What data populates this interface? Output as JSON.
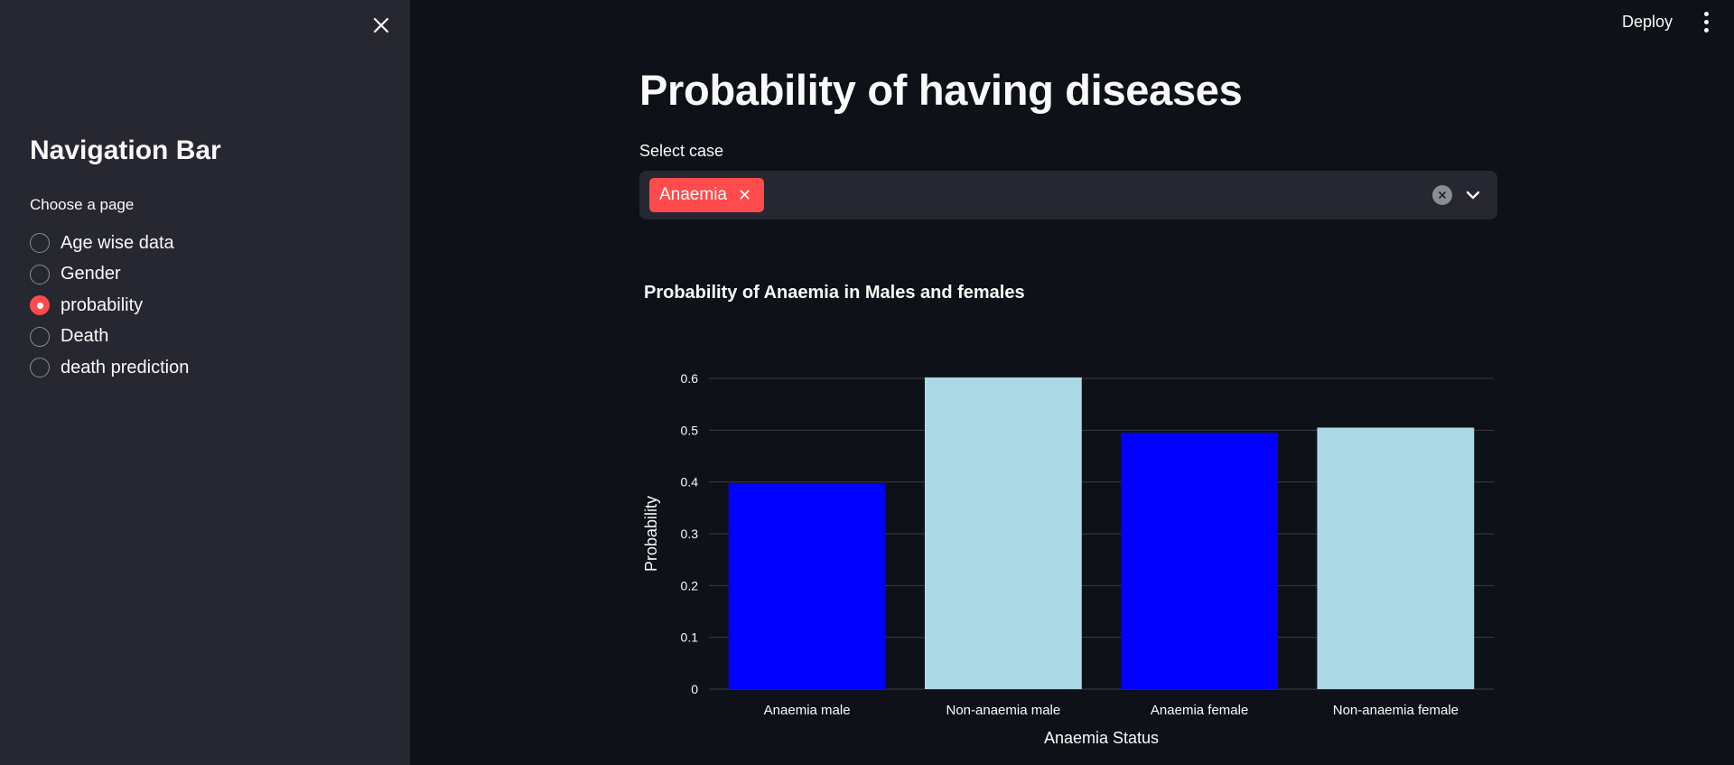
{
  "sidebar": {
    "title": "Navigation Bar",
    "radio_label": "Choose a page",
    "items": [
      {
        "label": "Age wise data",
        "selected": false
      },
      {
        "label": "Gender",
        "selected": false
      },
      {
        "label": "probability",
        "selected": true
      },
      {
        "label": "Death",
        "selected": false
      },
      {
        "label": "death prediction",
        "selected": false
      }
    ]
  },
  "header": {
    "deploy_label": "Deploy"
  },
  "main": {
    "title": "Probability of having diseases",
    "select_label": "Select case",
    "selected_tags": [
      "Anaemia"
    ]
  },
  "colors": {
    "accent": "#ff4b4b",
    "background": "#0e1117",
    "sidebar": "#262730"
  },
  "chart_data": {
    "type": "bar",
    "title": "Probability of Anaemia in Males and females",
    "xlabel": "Anaemia Status",
    "ylabel": "Probability",
    "categories": [
      "Anaemia male",
      "Non-anaemia male",
      "Anaemia female",
      "Non-anaemia female"
    ],
    "values": [
      0.398,
      0.602,
      0.495,
      0.505
    ],
    "bar_colors": [
      "#0000ff",
      "#add8e6",
      "#0000ff",
      "#add8e6"
    ],
    "ylim": [
      0,
      0.6
    ],
    "yticks": [
      "0",
      "0.1",
      "0.2",
      "0.3",
      "0.4",
      "0.5",
      "0.6"
    ],
    "grid": true
  }
}
